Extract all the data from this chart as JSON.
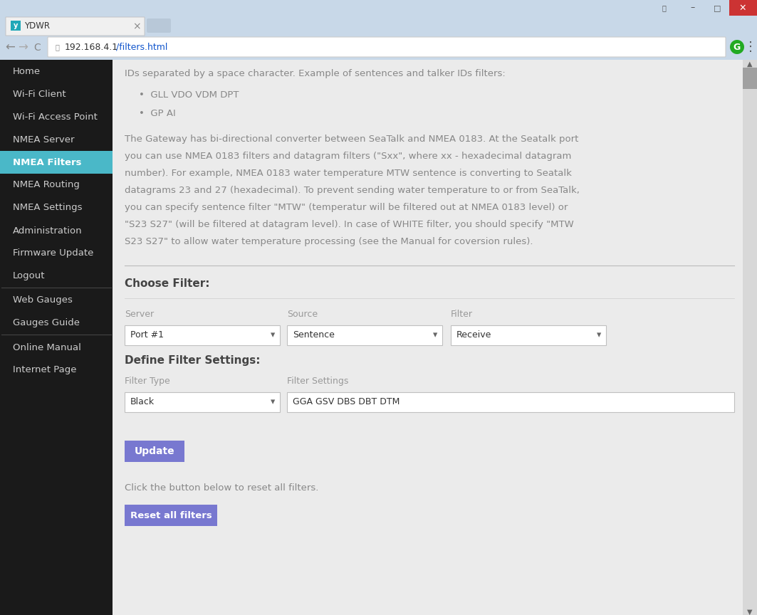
{
  "fig_width": 10.63,
  "fig_height": 8.64,
  "dpi": 100,
  "bg_color": "#c8d8e8",
  "tab_text": "YDWR",
  "url": "192.168.4.1/filters.html",
  "nav_bg": "#1a1a1a",
  "nav_active_bg": "#4ab8c8",
  "nav_items": [
    "Home",
    "Wi-Fi Client",
    "Wi-Fi Access Point",
    "NMEA Server",
    "NMEA Filters",
    "NMEA Routing",
    "NMEA Settings",
    "Administration",
    "Firmware Update",
    "Logout"
  ],
  "nav_active": "NMEA Filters",
  "nav_section2": [
    "Web Gauges",
    "Gauges Guide"
  ],
  "nav_section3": [
    "Online Manual",
    "Internet Page"
  ],
  "content_bg": "#ebebeb",
  "content_text_color": "#888888",
  "label_color": "#999999",
  "header_first_line": "IDs separated by a space character. Example of sentences and talker IDs filters:",
  "bullet_text1": "GLL VDO VDM DPT",
  "bullet_text2": "GP AI",
  "para_lines": [
    "The Gateway has bi-directional converter between SeaTalk and NMEA 0183. At the Seatalk port",
    "you can use NMEA 0183 filters and datagram filters (\"Sxx\", where xx - hexadecimal datagram",
    "number). For example, NMEA 0183 water temperature MTW sentence is converting to Seatalk",
    "datagrams 23 and 27 (hexadecimal). To prevent sending water temperature to or from SeaTalk,",
    "you can specify sentence filter \"MTW\" (temperatur will be filtered out at NMEA 0183 level) or",
    "\"S23 S27\" (will be filtered at datagram level). In case of WHITE filter, you should specify \"MTW",
    "S23 S27\" to allow water temperature processing (see the Manual for coversion rules)."
  ],
  "choose_filter_label": "Choose Filter:",
  "server_label": "Server",
  "source_label": "Source",
  "filter_label": "Filter",
  "server_value": "Port #1",
  "source_value": "Sentence",
  "filter_value": "Receive",
  "define_label": "Define Filter Settings:",
  "filter_type_label": "Filter Type",
  "filter_settings_label": "Filter Settings",
  "filter_type_value": "Black",
  "filter_settings_value": "GGA GSV DBS DBT DTM",
  "update_btn_text": "Update",
  "btn_color": "#7878d0",
  "reset_text": "Click the button below to reset all filters.",
  "reset_btn_text": "Reset all filters",
  "scrollbar_track": "#d8d8d8",
  "scrollbar_thumb": "#a0a0a0"
}
